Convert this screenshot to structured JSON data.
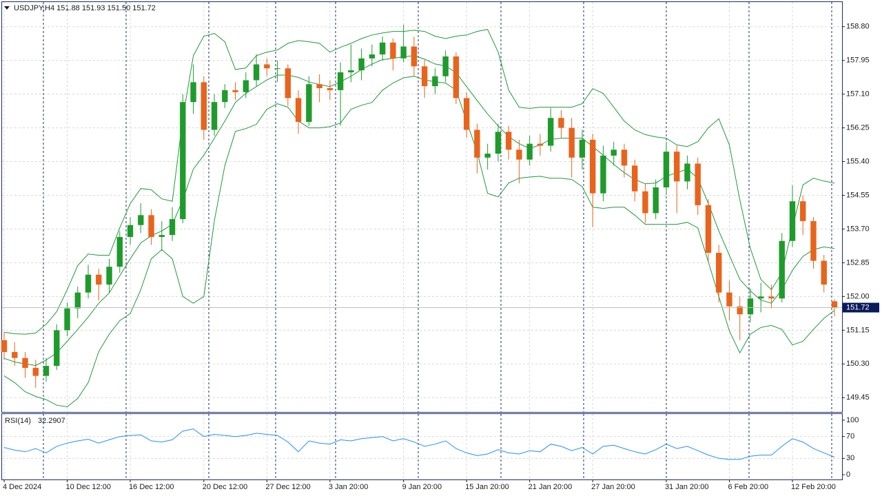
{
  "chart_data": {
    "type": "candlestick",
    "title": "USDJPY,H4  151.88 151.93 151.50 151.72",
    "bull_color": "#1f9b2c",
    "bear_color": "#e8641c",
    "grid": true,
    "ylim": [
      149.09,
      159.42
    ],
    "yticks": [
      {
        "value": 158.8,
        "label": "158.80"
      },
      157.95,
      {
        "value": 157.1,
        "label": "157.10"
      },
      156.25,
      {
        "value": 155.4,
        "label": "155.40"
      },
      154.55,
      {
        "value": 153.7,
        "label": "153.70"
      },
      152.85,
      {
        "value": 152,
        "label": "152.00"
      },
      151.15,
      {
        "value": 150.3,
        "label": "150.30"
      },
      149.45
    ],
    "categories": [
      "4 Dec 2024",
      null,
      null,
      null,
      null,
      null,
      "10 Dec 12:00",
      null,
      null,
      null,
      null,
      null,
      "16 Dec 12:00",
      null,
      null,
      null,
      null,
      null,
      null,
      "20 Dec 12:00",
      null,
      null,
      null,
      null,
      null,
      "27 Dec 12:00",
      null,
      null,
      null,
      null,
      null,
      "3 Jan 20:00",
      null,
      null,
      null,
      null,
      null,
      null,
      "9 Jan 20:00",
      null,
      null,
      null,
      null,
      null,
      "15 Jan 20:00",
      null,
      null,
      null,
      null,
      null,
      "21 Jan 20:00",
      null,
      null,
      null,
      null,
      null,
      "27 Jan 20:00",
      null,
      null,
      null,
      null,
      null,
      null,
      "31 Jan 20:00",
      null,
      null,
      null,
      null,
      null,
      "6 Feb 20:00",
      null,
      null,
      null,
      null,
      null,
      "12 Feb 20:00",
      null,
      null,
      null,
      null
    ],
    "candles": [
      [
        150.9,
        151.1,
        150.4,
        150.6
      ],
      [
        150.6,
        150.85,
        150.25,
        150.45
      ],
      [
        150.45,
        150.6,
        149.95,
        150.2
      ],
      [
        150.2,
        150.4,
        149.7,
        150.0
      ],
      [
        150.0,
        150.45,
        149.85,
        150.25
      ],
      [
        150.25,
        151.3,
        150.15,
        151.15
      ],
      [
        151.15,
        151.85,
        151.0,
        151.7
      ],
      [
        151.7,
        152.25,
        151.45,
        152.1
      ],
      [
        152.1,
        152.8,
        151.95,
        152.55
      ],
      [
        152.55,
        152.7,
        151.9,
        152.3
      ],
      [
        152.3,
        152.95,
        152.1,
        152.75
      ],
      [
        152.75,
        153.65,
        152.6,
        153.5
      ],
      [
        153.5,
        154.0,
        153.3,
        153.8
      ],
      [
        153.8,
        154.35,
        153.6,
        154.05
      ],
      [
        154.05,
        154.2,
        153.3,
        153.5
      ],
      [
        153.5,
        153.9,
        153.15,
        153.55
      ],
      [
        153.55,
        154.25,
        153.4,
        153.95
      ],
      [
        153.95,
        157.1,
        153.85,
        156.9
      ],
      [
        156.9,
        157.85,
        156.6,
        157.4
      ],
      [
        157.4,
        157.55,
        155.95,
        156.2
      ],
      [
        156.2,
        157.1,
        156.05,
        156.9
      ],
      [
        156.9,
        157.35,
        156.75,
        157.2
      ],
      [
        157.2,
        157.4,
        156.95,
        157.15
      ],
      [
        157.15,
        157.65,
        157.0,
        157.45
      ],
      [
        157.45,
        158.1,
        157.3,
        157.85
      ],
      [
        157.85,
        158.0,
        157.55,
        157.75
      ],
      [
        157.75,
        157.95,
        157.4,
        157.75
      ],
      [
        157.75,
        157.85,
        156.8,
        157.0
      ],
      [
        157.0,
        157.2,
        156.1,
        156.4
      ],
      [
        156.4,
        157.55,
        156.3,
        157.35
      ],
      [
        157.35,
        157.6,
        156.9,
        157.25
      ],
      [
        157.25,
        157.45,
        156.95,
        157.2
      ],
      [
        157.2,
        157.9,
        156.3,
        157.65
      ],
      [
        157.65,
        158.35,
        157.4,
        157.7
      ],
      [
        157.7,
        158.25,
        157.45,
        158.0
      ],
      [
        158.0,
        158.35,
        157.8,
        158.1
      ],
      [
        158.1,
        158.55,
        157.95,
        158.4
      ],
      [
        158.4,
        158.5,
        157.7,
        158.0
      ],
      [
        158.0,
        158.85,
        157.9,
        158.3
      ],
      [
        158.3,
        158.55,
        157.55,
        157.8
      ],
      [
        157.8,
        157.95,
        157.0,
        157.3
      ],
      [
        157.3,
        157.75,
        157.1,
        157.55
      ],
      [
        157.55,
        158.2,
        157.4,
        158.05
      ],
      [
        158.05,
        158.15,
        156.85,
        157.0
      ],
      [
        157.0,
        157.15,
        156.0,
        156.2
      ],
      [
        156.2,
        156.35,
        155.1,
        155.5
      ],
      [
        155.5,
        155.85,
        155.2,
        155.6
      ],
      [
        155.6,
        156.35,
        155.4,
        156.15
      ],
      [
        156.15,
        156.3,
        155.45,
        155.7
      ],
      [
        155.7,
        155.95,
        154.85,
        155.45
      ],
      [
        155.45,
        156.05,
        155.3,
        155.85
      ],
      [
        155.85,
        156.1,
        155.55,
        155.8
      ],
      [
        155.8,
        156.75,
        155.65,
        156.5
      ],
      [
        156.5,
        156.7,
        156.0,
        156.25
      ],
      [
        156.25,
        156.5,
        155.0,
        155.5
      ],
      [
        155.5,
        156.2,
        155.2,
        155.95
      ],
      [
        155.95,
        156.1,
        153.75,
        154.6
      ],
      [
        154.6,
        155.8,
        154.4,
        155.55
      ],
      [
        155.55,
        155.9,
        155.3,
        155.7
      ],
      [
        155.7,
        155.85,
        155.0,
        155.3
      ],
      [
        155.3,
        155.45,
        154.4,
        154.65
      ],
      [
        154.65,
        154.85,
        153.85,
        154.1
      ],
      [
        154.1,
        154.95,
        153.95,
        154.75
      ],
      [
        154.75,
        155.9,
        154.55,
        155.65
      ],
      [
        155.65,
        155.8,
        154.1,
        154.9
      ],
      [
        154.9,
        155.55,
        154.7,
        155.35
      ],
      [
        155.35,
        155.5,
        154.05,
        154.3
      ],
      [
        154.3,
        154.45,
        152.85,
        153.1
      ],
      [
        153.1,
        153.3,
        151.85,
        152.1
      ],
      [
        152.1,
        152.4,
        151.4,
        151.75
      ],
      [
        151.75,
        152.0,
        150.9,
        151.55
      ],
      [
        151.55,
        152.2,
        151.35,
        151.95
      ],
      [
        151.95,
        152.35,
        151.6,
        152.0
      ],
      [
        152.0,
        152.3,
        151.7,
        151.95
      ],
      [
        151.95,
        153.6,
        151.85,
        153.4
      ],
      [
        153.4,
        154.8,
        153.25,
        154.4
      ],
      [
        154.4,
        154.55,
        153.55,
        153.9
      ],
      [
        153.9,
        154.0,
        152.7,
        152.9
      ],
      [
        152.9,
        153.05,
        152.1,
        152.3
      ],
      [
        151.88,
        151.93,
        151.5,
        151.72
      ]
    ],
    "bollinger": {
      "color": "#1e9a3a",
      "upper": [
        151.1,
        151.06,
        151.05,
        151.08,
        151.3,
        151.62,
        152.17,
        152.78,
        153.07,
        153.04,
        153.04,
        153.73,
        154.34,
        154.72,
        154.69,
        154.46,
        154.4,
        156.5,
        158.07,
        158.56,
        158.63,
        158.42,
        157.72,
        157.76,
        158.07,
        158.16,
        158.21,
        158.38,
        158.45,
        158.42,
        158.38,
        158.16,
        158.28,
        158.38,
        158.5,
        158.59,
        158.64,
        158.68,
        158.68,
        158.71,
        158.68,
        158.56,
        158.5,
        158.56,
        158.59,
        158.68,
        158.73,
        158.16,
        157.2,
        156.77,
        156.74,
        156.77,
        156.77,
        156.77,
        156.77,
        156.86,
        157.24,
        157.12,
        156.77,
        156.42,
        156.2,
        156.08,
        156.02,
        155.99,
        155.82,
        155.78,
        155.9,
        156.25,
        156.48,
        155.82,
        154.43,
        153.21,
        152.43,
        152.17,
        152.6,
        153.73,
        154.81,
        154.98,
        154.91,
        154.86
      ],
      "middle": [
        150.44,
        150.35,
        150.3,
        150.26,
        150.4,
        150.58,
        150.87,
        151.17,
        151.48,
        151.83,
        152.09,
        152.52,
        152.95,
        153.35,
        153.53,
        153.65,
        153.82,
        154.43,
        155.21,
        155.56,
        155.99,
        156.42,
        156.89,
        157.12,
        157.29,
        157.46,
        157.58,
        157.58,
        157.52,
        157.41,
        157.34,
        157.29,
        157.41,
        157.55,
        157.72,
        157.86,
        157.97,
        158.0,
        158.04,
        158.07,
        157.98,
        157.86,
        157.81,
        157.64,
        157.29,
        156.94,
        156.6,
        156.3,
        156.03,
        155.85,
        155.73,
        155.82,
        155.96,
        155.99,
        155.99,
        155.99,
        155.78,
        155.56,
        155.33,
        155.12,
        154.95,
        154.84,
        154.86,
        155.03,
        155.12,
        155.21,
        154.98,
        154.34,
        153.65,
        153.04,
        152.43,
        152.14,
        151.91,
        151.83,
        152.17,
        152.66,
        153.01,
        153.18,
        153.25,
        153.21
      ],
      "lower": [
        150.0,
        149.83,
        149.6,
        149.48,
        149.4,
        149.26,
        149.22,
        149.43,
        149.83,
        150.61,
        151.05,
        151.39,
        151.57,
        152.17,
        152.95,
        153.18,
        152.95,
        152.0,
        151.83,
        152.0,
        153.91,
        155.3,
        156.16,
        156.23,
        156.34,
        156.72,
        156.86,
        156.77,
        156.42,
        156.25,
        156.25,
        156.28,
        156.37,
        156.72,
        156.82,
        156.89,
        157.2,
        157.38,
        157.51,
        157.55,
        157.46,
        157.41,
        157.38,
        157.2,
        156.42,
        155.64,
        154.6,
        154.51,
        154.86,
        154.98,
        155.01,
        155.03,
        154.98,
        154.98,
        154.95,
        154.77,
        154.25,
        154.22,
        154.25,
        154.25,
        154.05,
        153.82,
        153.82,
        153.82,
        153.82,
        153.87,
        153.73,
        152.87,
        152.0,
        151.13,
        150.58,
        151.05,
        151.22,
        151.27,
        151.17,
        150.78,
        150.87,
        151.17,
        151.45,
        151.65
      ]
    },
    "rsi": {
      "label": "RSI(14)",
      "color": "#1e90ff",
      "ylim": [
        -8.75,
        111.25
      ],
      "yticks": [
        100,
        70,
        30,
        0
      ],
      "levels": [
        70,
        30
      ],
      "values": [
        50,
        45,
        42,
        48,
        40,
        52,
        58,
        62,
        65,
        58,
        64,
        70,
        72,
        73,
        62,
        60,
        64,
        80,
        84,
        70,
        74,
        72,
        70,
        72,
        76,
        74,
        72,
        60,
        42,
        62,
        58,
        56,
        64,
        62,
        66,
        68,
        70,
        62,
        66,
        60,
        52,
        56,
        62,
        48,
        40,
        35,
        38,
        46,
        40,
        38,
        44,
        42,
        56,
        52,
        44,
        50,
        38,
        52,
        54,
        48,
        42,
        38,
        46,
        56,
        48,
        52,
        44,
        36,
        30,
        28,
        28,
        34,
        36,
        36,
        52,
        66,
        60,
        48,
        40,
        32.2907
      ]
    }
  }
}
